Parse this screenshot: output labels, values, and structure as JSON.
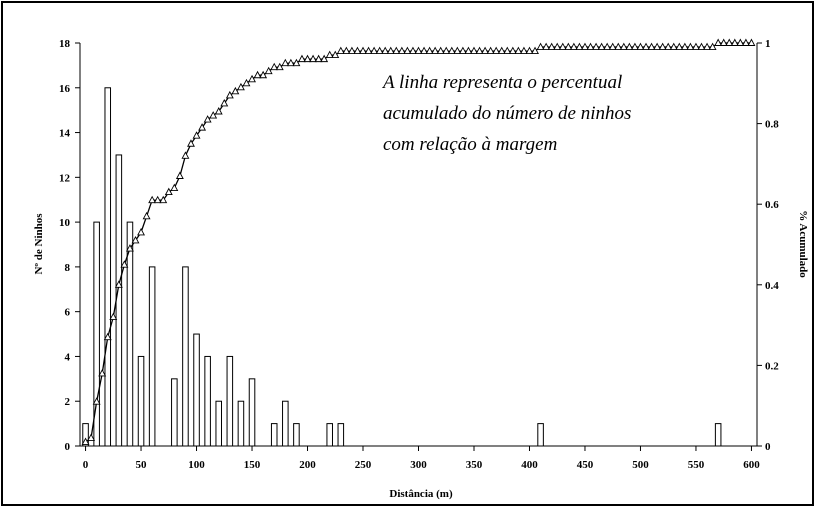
{
  "chart_data": {
    "type": "bar",
    "xlabel": "Distância (m)",
    "ylabel_left": "Nº de Ninhos",
    "ylabel_right": "% Acumulado",
    "xlim": [
      -5,
      605
    ],
    "ylim_left": [
      0,
      18
    ],
    "ylim_right": [
      0,
      1
    ],
    "x_ticks": [
      "0",
      "50",
      "100",
      "150",
      "200",
      "250",
      "300",
      "350",
      "400",
      "450",
      "500",
      "550",
      "600"
    ],
    "y_ticks_left": [
      "0",
      "2",
      "4",
      "6",
      "8",
      "10",
      "12",
      "14",
      "16",
      "18"
    ],
    "y_ticks_right": [
      "0",
      "0.2",
      "0.4",
      "0.6",
      "0.8",
      "1"
    ],
    "annotation": [
      "A linha representa o percentual",
      "acumulado do número de ninhos",
      "com relação à margem"
    ],
    "series": [
      {
        "type": "bar",
        "bin_width": 5,
        "x": [
          0,
          10,
          20,
          30,
          40,
          50,
          60,
          80,
          90,
          100,
          110,
          120,
          130,
          140,
          150,
          170,
          180,
          190,
          220,
          230,
          410,
          570
        ],
        "values": [
          1,
          10,
          16,
          13,
          10,
          4,
          8,
          3,
          8,
          5,
          4,
          2,
          4,
          2,
          3,
          1,
          2,
          1,
          1,
          1,
          1,
          1
        ]
      },
      {
        "type": "line",
        "marker": "triangle",
        "x": [
          0,
          5,
          10,
          15,
          20,
          25,
          30,
          35,
          40,
          45,
          50,
          55,
          60,
          65,
          70,
          75,
          80,
          85,
          90,
          95,
          100,
          105,
          110,
          115,
          120,
          125,
          130,
          135,
          140,
          145,
          150,
          155,
          160,
          165,
          170,
          175,
          180,
          185,
          190,
          195,
          200,
          205,
          210,
          215,
          220,
          225,
          230,
          235,
          240,
          245,
          250,
          255,
          260,
          265,
          270,
          275,
          280,
          285,
          290,
          295,
          300,
          305,
          310,
          315,
          320,
          325,
          330,
          335,
          340,
          345,
          350,
          355,
          360,
          365,
          370,
          375,
          380,
          385,
          390,
          395,
          400,
          405,
          410,
          415,
          420,
          425,
          430,
          435,
          440,
          445,
          450,
          455,
          460,
          465,
          470,
          475,
          480,
          485,
          490,
          495,
          500,
          505,
          510,
          515,
          520,
          525,
          530,
          535,
          540,
          545,
          550,
          555,
          560,
          565,
          570,
          575,
          580,
          585,
          590,
          595,
          600
        ],
        "values": [
          0.01,
          0.02,
          0.11,
          0.18,
          0.27,
          0.32,
          0.4,
          0.45,
          0.49,
          0.51,
          0.53,
          0.57,
          0.61,
          0.61,
          0.61,
          0.63,
          0.64,
          0.67,
          0.72,
          0.75,
          0.77,
          0.79,
          0.81,
          0.82,
          0.83,
          0.85,
          0.87,
          0.88,
          0.89,
          0.9,
          0.91,
          0.92,
          0.92,
          0.93,
          0.94,
          0.94,
          0.95,
          0.95,
          0.95,
          0.96,
          0.96,
          0.96,
          0.96,
          0.96,
          0.97,
          0.97,
          0.98,
          0.98,
          0.98,
          0.98,
          0.98,
          0.98,
          0.98,
          0.98,
          0.98,
          0.98,
          0.98,
          0.98,
          0.98,
          0.98,
          0.98,
          0.98,
          0.98,
          0.98,
          0.98,
          0.98,
          0.98,
          0.98,
          0.98,
          0.98,
          0.98,
          0.98,
          0.98,
          0.98,
          0.98,
          0.98,
          0.98,
          0.98,
          0.98,
          0.98,
          0.98,
          0.98,
          0.99,
          0.99,
          0.99,
          0.99,
          0.99,
          0.99,
          0.99,
          0.99,
          0.99,
          0.99,
          0.99,
          0.99,
          0.99,
          0.99,
          0.99,
          0.99,
          0.99,
          0.99,
          0.99,
          0.99,
          0.99,
          0.99,
          0.99,
          0.99,
          0.99,
          0.99,
          0.99,
          0.99,
          0.99,
          0.99,
          0.99,
          0.99,
          1.0,
          1.0,
          1.0,
          1.0,
          1.0,
          1.0,
          1.0
        ]
      }
    ]
  }
}
